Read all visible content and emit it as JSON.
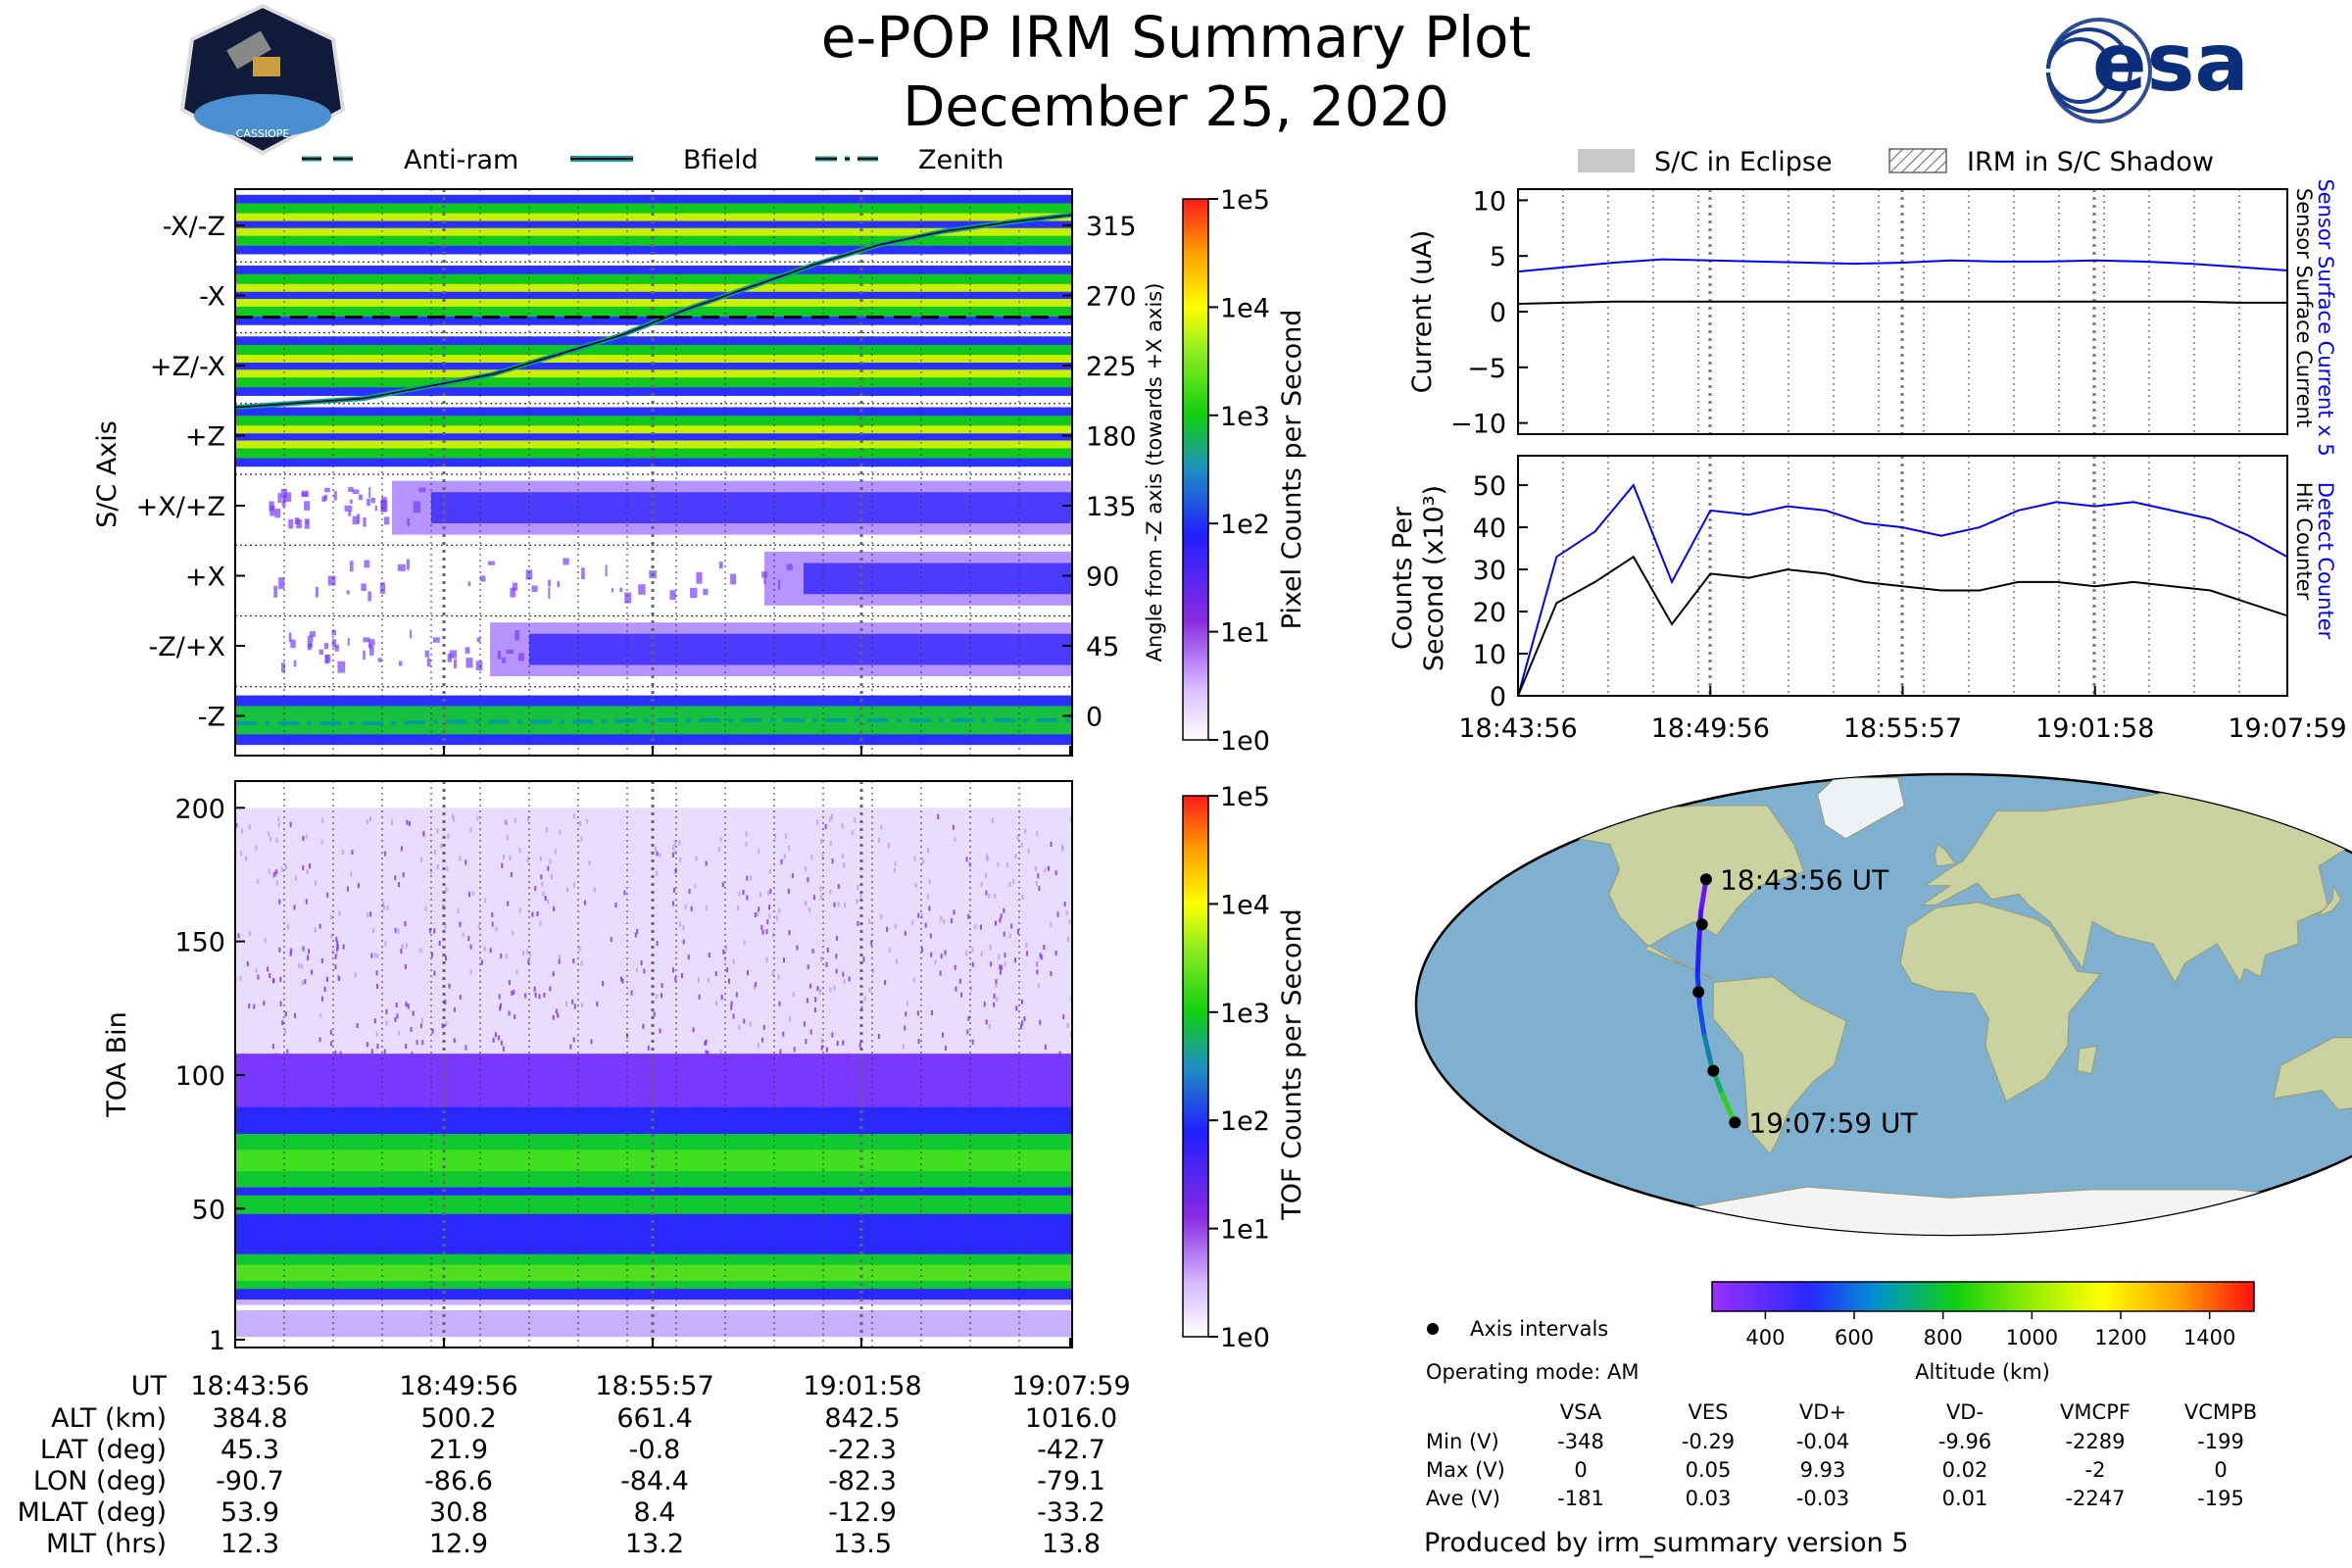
{
  "title": "e-POP IRM Summary Plot",
  "date": "December 25, 2020",
  "logos": {
    "cassiope": "CASSIOPE",
    "esa": "esa"
  },
  "colors": {
    "bfield": "#009e9e",
    "sensor_current_x5": "#0000ff",
    "black": "#000000",
    "sp_cmap_start": "#ffffff"
  },
  "top_legend": [
    "Anti-ram",
    "Bfield",
    "Zenith"
  ],
  "right_legend": [
    "S/C in Eclipse",
    "IRM in S/C Shadow"
  ],
  "chart_data": [
    {
      "type": "heatmap",
      "name": "sc-axis-spectrogram",
      "ylabel": "S/C Axis",
      "ylabel_right": "Angle from -Z axis (towards +X axis)",
      "y_categories": [
        "-X/-Z",
        "-X",
        "+Z/-X",
        "+Z",
        "+X/+Z",
        "+X",
        "-Z/+X",
        "-Z"
      ],
      "y_right_ticks": [
        "315",
        "270",
        "225",
        "180",
        "135",
        "90",
        "45",
        "0"
      ],
      "colorbar_label": "Pixel Counts per Second",
      "colorbar_ticks": [
        "1e5",
        "1e4",
        "1e3",
        "1e2",
        "1e1",
        "1e0"
      ],
      "series": [
        {
          "name": "Bfield",
          "angle_deg": [
            210,
            213,
            216,
            224,
            232,
            245,
            258,
            275,
            290,
            305,
            318,
            327,
            333,
            338
          ]
        },
        {
          "name": "Anti-ram",
          "angle_deg": [
            270,
            270,
            270,
            270,
            270,
            270,
            270,
            270,
            270,
            270,
            270,
            270,
            270
          ]
        },
        {
          "name": "Zenith",
          "angle_deg": [
            0,
            0,
            0,
            1,
            1,
            1,
            2,
            2,
            2,
            2,
            2,
            2,
            2
          ]
        }
      ]
    },
    {
      "type": "heatmap",
      "name": "toa-spectrogram",
      "ylabel": "TOA Bin",
      "y_ticks": [
        "200",
        "150",
        "100",
        "50",
        "1"
      ],
      "ylim": [
        1,
        210
      ],
      "colorbar_label": "TOF Counts per Second",
      "colorbar_ticks": [
        "1e5",
        "1e4",
        "1e3",
        "1e2",
        "1e1",
        "1e0"
      ]
    },
    {
      "type": "line",
      "name": "current-plot",
      "ylabel": "Current (uA)",
      "ylim": [
        -11,
        11
      ],
      "y_ticks": [
        "10",
        "5",
        "0",
        "−5",
        "−10"
      ],
      "right_label_blue": "Sensor Surface Current x 5",
      "right_label_black": "Sensor Surface Current",
      "series": [
        {
          "name": "Sensor Surface Current x 5",
          "values": [
            3.6,
            4.0,
            4.4,
            4.7,
            4.6,
            4.5,
            4.4,
            4.3,
            4.4,
            4.6,
            4.5,
            4.5,
            4.6,
            4.5,
            4.3,
            4.0,
            3.7
          ]
        },
        {
          "name": "Sensor Surface Current",
          "values": [
            0.7,
            0.8,
            0.9,
            0.9,
            0.9,
            0.9,
            0.9,
            0.9,
            0.9,
            0.9,
            0.9,
            0.9,
            0.9,
            0.9,
            0.9,
            0.8,
            0.8
          ]
        }
      ]
    },
    {
      "type": "line",
      "name": "counts-plot",
      "ylabel": "Counts Per Second (x10³)",
      "ylim": [
        0,
        57
      ],
      "y_ticks": [
        "50",
        "40",
        "30",
        "20",
        "10",
        "0"
      ],
      "x_ticks": [
        "18:43:56",
        "18:49:56",
        "18:55:57",
        "19:01:58",
        "19:07:59"
      ],
      "right_label_blue": "Detect Counter",
      "right_label_black": "Hit Counter",
      "series": [
        {
          "name": "Detect Counter",
          "values": [
            0,
            33,
            39,
            50,
            27,
            44,
            43,
            45,
            44,
            41,
            40,
            38,
            40,
            44,
            46,
            45,
            46,
            44,
            42,
            38,
            33
          ]
        },
        {
          "name": "Hit Counter",
          "values": [
            0,
            22,
            27,
            33,
            17,
            29,
            28,
            30,
            29,
            27,
            26,
            25,
            25,
            27,
            27,
            26,
            27,
            26,
            25,
            22,
            19
          ]
        }
      ]
    }
  ],
  "map": {
    "start_label": "18:43:56 UT",
    "end_label": "19:07:59 UT",
    "legend_label": "Axis intervals",
    "altitude_label": "Altitude (km)",
    "altitude_ticks": [
      "400",
      "600",
      "800",
      "1000",
      "1200",
      "1400"
    ],
    "track": [
      [
        -90.7,
        45.3
      ],
      [
        -88.6,
        33.6
      ],
      [
        -86.6,
        21.9
      ],
      [
        -85.6,
        10.6
      ],
      [
        -84.4,
        -0.8
      ],
      [
        -83.3,
        -11.6
      ],
      [
        -82.3,
        -22.3
      ],
      [
        -80.7,
        -32.5
      ],
      [
        -79.1,
        -42.7
      ]
    ],
    "axis_points": [
      [
        -90.7,
        45.3
      ],
      [
        -87.0,
        29.0
      ],
      [
        -84.9,
        4.5
      ],
      [
        -82.0,
        -24.0
      ],
      [
        -79.1,
        -42.7
      ]
    ]
  },
  "orbit_table": {
    "ut_label": "UT",
    "ut": [
      "18:43:56",
      "18:49:56",
      "18:55:57",
      "19:01:58",
      "19:07:59"
    ],
    "rows": [
      {
        "label": "ALT (km)",
        "values": [
          "384.8",
          "500.2",
          "661.4",
          "842.5",
          "1016.0"
        ]
      },
      {
        "label": "LAT (deg)",
        "values": [
          "45.3",
          "21.9",
          "-0.8",
          "-22.3",
          "-42.7"
        ]
      },
      {
        "label": "LON (deg)",
        "values": [
          "-90.7",
          "-86.6",
          "-84.4",
          "-82.3",
          "-79.1"
        ]
      },
      {
        "label": "MLAT (deg)",
        "values": [
          "53.9",
          "30.8",
          "8.4",
          "-12.9",
          "-33.2"
        ]
      },
      {
        "label": "MLT (hrs)",
        "values": [
          "12.3",
          "12.9",
          "13.2",
          "13.5",
          "13.8"
        ]
      }
    ]
  },
  "operating_mode": "Operating mode: AM",
  "voltage_table": {
    "headers": [
      "VSA",
      "VES",
      "VD+",
      "VD-",
      "VMCPF",
      "VCMPB"
    ],
    "rows": [
      {
        "label": "Min (V)",
        "values": [
          "-348",
          "-0.29",
          "-0.04",
          "-9.96",
          "-2289",
          "-199"
        ]
      },
      {
        "label": "Max (V)",
        "values": [
          "0",
          "0.05",
          "9.93",
          "0.02",
          "-2",
          "0"
        ]
      },
      {
        "label": "Ave (V)",
        "values": [
          "-181",
          "0.03",
          "-0.03",
          "0.01",
          "-2247",
          "-195"
        ]
      }
    ]
  },
  "footer": "Produced by irm_summary version 5"
}
